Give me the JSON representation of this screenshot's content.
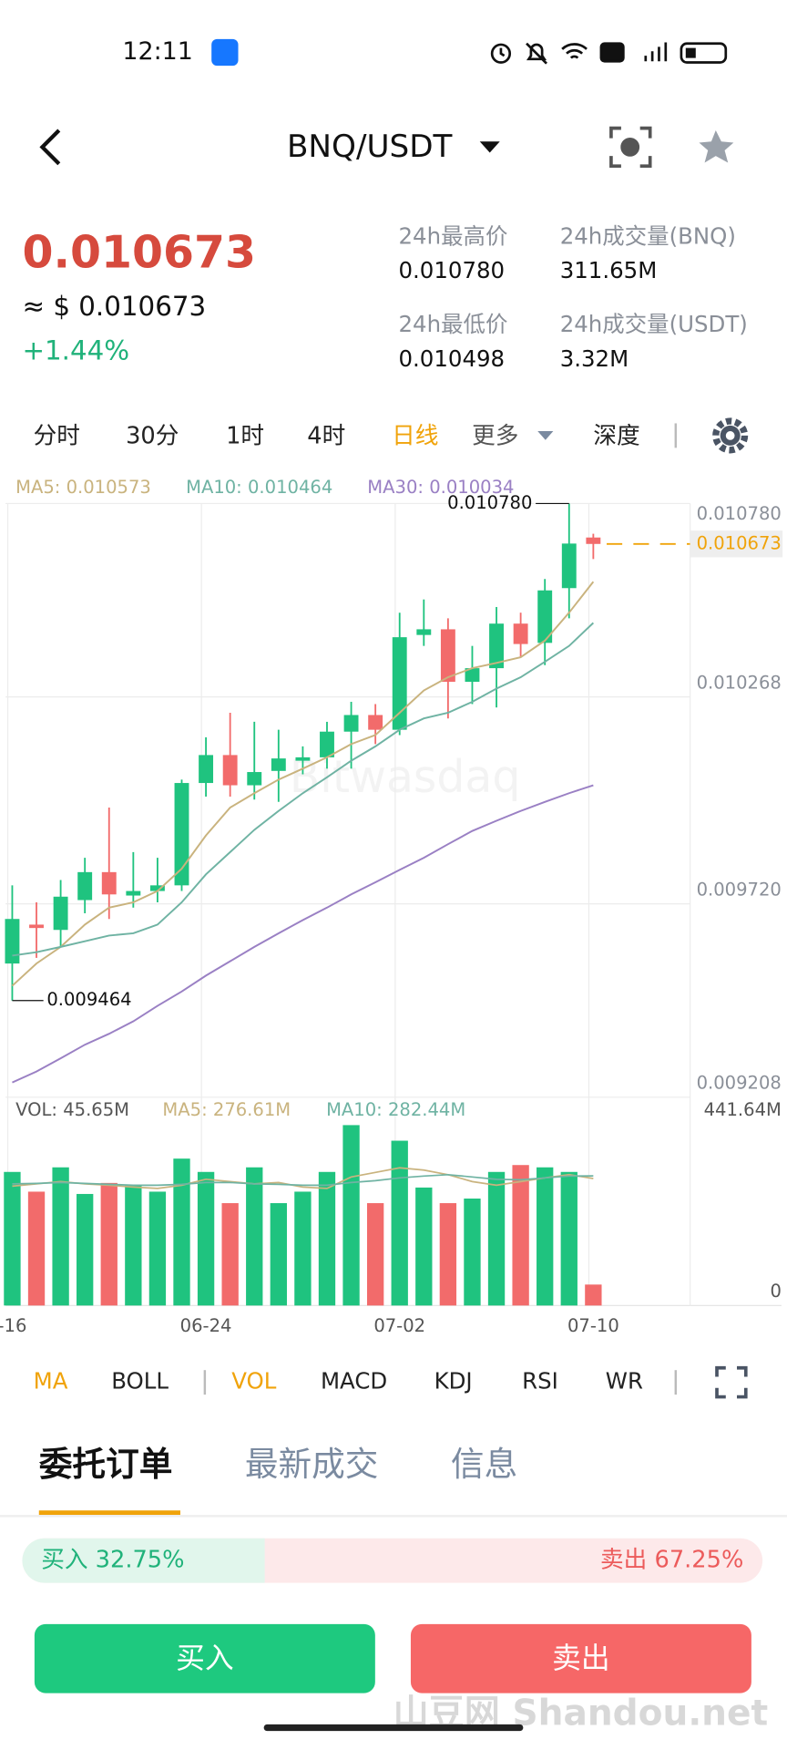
{
  "status_bar": {
    "time": "12:11"
  },
  "header": {
    "pair": "BNQ/USDT"
  },
  "ticker": {
    "price": "0.010673",
    "usd_price": "≈ $ 0.010673",
    "change": "+1.44%",
    "stats": [
      {
        "label": "24h最高价",
        "value": "0.010780"
      },
      {
        "label": "24h成交量(BNQ)",
        "value": "311.65M"
      },
      {
        "label": "24h最低价",
        "value": "0.010498"
      },
      {
        "label": "24h成交量(USDT)",
        "value": "3.32M"
      }
    ]
  },
  "intervals": [
    "分时",
    "30分",
    "1时",
    "4时",
    "日线",
    "更多",
    "深度"
  ],
  "chart": {
    "type": "candlestick",
    "categories": [
      "-16",
      null,
      null,
      null,
      null,
      null,
      null,
      null,
      "06-24",
      null,
      null,
      null,
      null,
      null,
      null,
      null,
      "07-02",
      null,
      null,
      null,
      null,
      null,
      null,
      null,
      "07-10"
    ],
    "open": [
      0.009562,
      0.009665,
      0.009651,
      0.00973,
      0.009804,
      0.009742,
      0.009754,
      0.009769,
      0.01004,
      0.010114,
      0.010034,
      0.010072,
      0.010099,
      0.010108,
      0.010176,
      0.01022,
      0.010181,
      0.010432,
      0.010447,
      0.010308,
      0.010344,
      0.010462,
      0.010411,
      0.010556,
      0.01069
    ],
    "high": [
      0.009769,
      0.009724,
      0.009783,
      0.009842,
      0.009975,
      0.009857,
      0.009842,
      0.010049,
      0.010161,
      0.010226,
      0.010202,
      0.010181,
      0.010137,
      0.010202,
      0.010255,
      0.010249,
      0.010491,
      0.010526,
      0.010476,
      0.010403,
      0.010506,
      0.010491,
      0.01058,
      0.01078,
      0.0107
    ],
    "low": [
      0.009464,
      0.009577,
      0.009606,
      0.009695,
      0.00968,
      0.00971,
      0.009724,
      0.009754,
      0.010004,
      0.010004,
      0.009996,
      0.00999,
      0.010063,
      0.010078,
      0.010078,
      0.010143,
      0.010167,
      0.010403,
      0.010211,
      0.010249,
      0.01024,
      0.010373,
      0.010352,
      0.010476,
      0.010633
    ],
    "close": [
      0.00968,
      0.009656,
      0.009739,
      0.009804,
      0.009745,
      0.009754,
      0.009769,
      0.01004,
      0.010114,
      0.010034,
      0.010069,
      0.010105,
      0.010108,
      0.010176,
      0.01022,
      0.010181,
      0.010426,
      0.010447,
      0.010308,
      0.010344,
      0.010462,
      0.010408,
      0.01055,
      0.010674,
      0.010673
    ],
    "up_color": "#1fc37f",
    "down_color": "#f26b6b",
    "ylim": [
      0.009208,
      0.01078
    ],
    "yticks": [
      {
        "value": 0.01078,
        "label": "0.010780"
      },
      0.010268,
      {
        "value": 0.00972,
        "label": "0.009720"
      },
      0.009208
    ],
    "grid": true,
    "high_label": "0.010780",
    "low_label": "0.009464",
    "current_price": {
      "value": 0.010673,
      "label": "0.010673"
    },
    "series": [
      {
        "name": "MA5: 0.010573",
        "color": "#c9b37e",
        "values": [
          0.009503,
          0.009562,
          0.009606,
          0.009665,
          0.00971,
          0.009724,
          0.009754,
          0.009813,
          0.009901,
          0.009975,
          0.010013,
          0.010049,
          0.010078,
          0.010108,
          0.010143,
          0.010167,
          0.010226,
          0.010285,
          0.01032,
          0.010344,
          0.010358,
          0.010373,
          0.010417,
          0.010491,
          0.010573
        ]
      },
      {
        "name": "MA10: 0.010464",
        "color": "#6fb3a3",
        "values": [
          0.009583,
          0.009592,
          0.009606,
          0.009621,
          0.009636,
          0.009642,
          0.009665,
          0.009724,
          0.009798,
          0.009857,
          0.009916,
          0.009966,
          0.010013,
          0.010055,
          0.010099,
          0.010137,
          0.010181,
          0.010211,
          0.010226,
          0.010255,
          0.01029,
          0.01032,
          0.010361,
          0.010403,
          0.010464
        ]
      },
      {
        "name": "MA30: 0.010034",
        "color": "#9a80c4",
        "values": [
          0.009247,
          0.009276,
          0.009311,
          0.009347,
          0.009376,
          0.009409,
          0.00945,
          0.009488,
          0.00953,
          0.009568,
          0.009606,
          0.009642,
          0.009677,
          0.00971,
          0.009745,
          0.009777,
          0.00981,
          0.009842,
          0.009878,
          0.009913,
          0.00994,
          0.009966,
          0.00999,
          0.010013,
          0.010034
        ]
      }
    ],
    "volume": {
      "type": "bar",
      "name": "VOL: 45.65M",
      "values": [
        291,
        248,
        301,
        243,
        267,
        262,
        248,
        320,
        291,
        223,
        301,
        223,
        248,
        291,
        393,
        223,
        359,
        257,
        223,
        233,
        291,
        306,
        301,
        291,
        45.65
      ],
      "ylim": [
        0,
        441.64
      ],
      "yticks": [
        {
          "value": 441.64,
          "label": "441.64M"
        },
        0
      ],
      "series": [
        {
          "name": "MA5: 276.61M",
          "color": "#c9b37e",
          "values": [
            260,
            265,
            270,
            265,
            262,
            258,
            255,
            262,
            275,
            270,
            265,
            268,
            258,
            255,
            280,
            290,
            300,
            295,
            285,
            270,
            262,
            270,
            278,
            285,
            276.61
          ]
        },
        {
          "name": "MA10: 282.44M",
          "color": "#6fb3a3",
          "values": [
            265,
            266,
            268,
            266,
            264,
            262,
            262,
            264,
            268,
            268,
            265,
            264,
            262,
            262,
            268,
            272,
            278,
            282,
            285,
            280,
            275,
            274,
            278,
            282,
            282.44
          ]
        }
      ]
    }
  },
  "indicators": [
    "MA",
    "BOLL",
    "VOL",
    "MACD",
    "KDJ",
    "RSI",
    "WR"
  ],
  "tabs": [
    "委托订单",
    "最新成交",
    "信息"
  ],
  "order_ratio": {
    "buy": {
      "label": "买入 32.75%",
      "value": 32.75
    },
    "sell": {
      "label": "卖出 67.25%",
      "value": 67.25
    }
  },
  "buttons": {
    "buy": "买入",
    "sell": "卖出"
  },
  "watermark": "山豆网 Shandou.net"
}
